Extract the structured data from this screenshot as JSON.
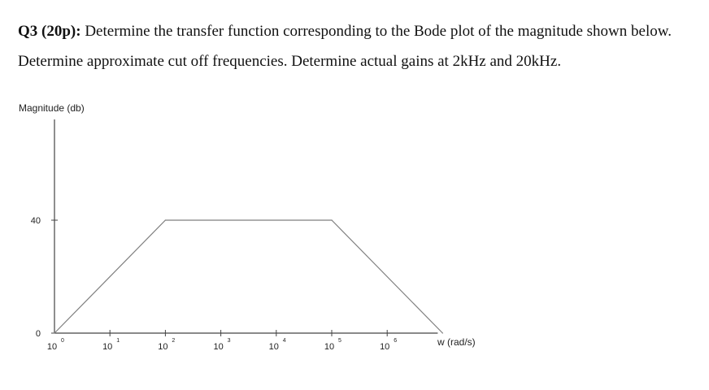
{
  "question": {
    "label": "Q3 (20p):",
    "text": "Determine the transfer function corresponding to the Bode plot of the magnitude shown below. Determine approximate cut off frequencies. Determine actual gains at 2kHz and 20kHz."
  },
  "chart_data": {
    "type": "line",
    "title": "",
    "xlabel": "w (rad/s)",
    "ylabel": "Magnitude (db)",
    "x_scale": "log",
    "x_ticks": [
      {
        "base": "10",
        "exp": "0"
      },
      {
        "base": "10",
        "exp": "1"
      },
      {
        "base": "10",
        "exp": "2"
      },
      {
        "base": "10",
        "exp": "3"
      },
      {
        "base": "10",
        "exp": "4"
      },
      {
        "base": "10",
        "exp": "5"
      },
      {
        "base": "10",
        "exp": "6"
      }
    ],
    "y_ticks": [
      "0",
      "40"
    ],
    "xlim": [
      1,
      10000000
    ],
    "ylim": [
      0,
      100
    ],
    "grid": false,
    "series": [
      {
        "x": [
          1,
          100,
          100000,
          10000000
        ],
        "y": [
          0,
          40,
          40,
          0
        ],
        "color": "#7f7f7f"
      }
    ]
  }
}
